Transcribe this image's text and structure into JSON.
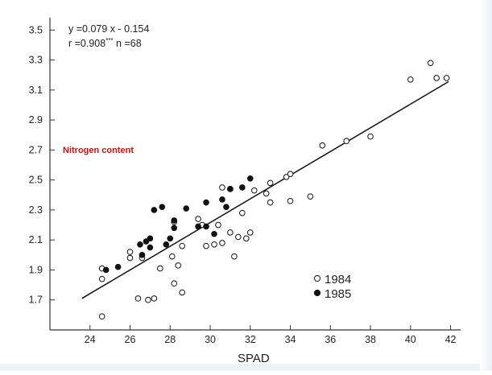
{
  "chart_data": {
    "type": "scatter",
    "title": "",
    "annotation_overlay": "Nitrogen content",
    "xlabel": "SPAD",
    "ylabel": "",
    "xlim": [
      22,
      42.5
    ],
    "ylim": [
      1.5,
      3.55
    ],
    "x_ticks": [
      24,
      26,
      28,
      30,
      32,
      34,
      36,
      38,
      40,
      42
    ],
    "y_ticks": [
      1.7,
      1.9,
      2.1,
      2.3,
      2.5,
      2.7,
      2.9,
      3.1,
      3.3,
      3.5
    ],
    "x_tick_labels": [
      "24",
      "26",
      "28",
      "30",
      "32",
      "34",
      "36",
      "38",
      "40",
      "42"
    ],
    "y_tick_labels": [
      "1.7",
      "1.9",
      "2.1",
      "2.3",
      "2.5",
      "2.7",
      "2.9",
      "3.1",
      "3.3",
      "3.5"
    ],
    "equation": "y =0.079 x - 0.154",
    "stats": "r =0.908*** n =68",
    "regression": {
      "slope": 0.079,
      "intercept": -0.154,
      "x_range": [
        23.6,
        41.9
      ]
    },
    "grid": false,
    "legend_position": "bottom-right",
    "colors": {
      "axis": "#333333",
      "open_marker_fill": "#ffffff",
      "filled_marker_fill": "#111111",
      "overlay_text": "#cc1111"
    },
    "series": [
      {
        "name": "1984",
        "marker": "open-circle",
        "points": [
          [
            24.6,
            1.91
          ],
          [
            24.6,
            1.84
          ],
          [
            24.6,
            1.59
          ],
          [
            26.0,
            2.02
          ],
          [
            26.0,
            1.98
          ],
          [
            26.4,
            1.71
          ],
          [
            26.6,
            1.98
          ],
          [
            26.9,
            1.7
          ],
          [
            27.2,
            1.71
          ],
          [
            27.5,
            1.91
          ],
          [
            28.2,
            2.22
          ],
          [
            28.1,
            1.99
          ],
          [
            28.2,
            1.81
          ],
          [
            28.4,
            1.93
          ],
          [
            28.6,
            1.75
          ],
          [
            28.6,
            2.06
          ],
          [
            29.4,
            2.24
          ],
          [
            29.6,
            2.2
          ],
          [
            29.8,
            2.06
          ],
          [
            30.2,
            2.07
          ],
          [
            30.4,
            2.2
          ],
          [
            30.6,
            2.08
          ],
          [
            30.6,
            2.45
          ],
          [
            31.0,
            2.44
          ],
          [
            31.0,
            2.15
          ],
          [
            31.2,
            1.99
          ],
          [
            31.4,
            2.12
          ],
          [
            31.6,
            2.28
          ],
          [
            31.8,
            2.11
          ],
          [
            32.0,
            2.15
          ],
          [
            32.2,
            2.43
          ],
          [
            32.8,
            2.41
          ],
          [
            33.0,
            2.48
          ],
          [
            33.0,
            2.35
          ],
          [
            33.8,
            2.52
          ],
          [
            34.0,
            2.54
          ],
          [
            34.0,
            2.36
          ],
          [
            35.0,
            2.39
          ],
          [
            35.6,
            2.73
          ],
          [
            36.8,
            2.76
          ],
          [
            38.0,
            2.79
          ],
          [
            40.0,
            3.17
          ],
          [
            41.0,
            3.28
          ],
          [
            41.3,
            3.18
          ],
          [
            41.8,
            3.18
          ]
        ]
      },
      {
        "name": "1985",
        "marker": "filled-circle",
        "points": [
          [
            24.8,
            1.9
          ],
          [
            25.4,
            1.92
          ],
          [
            26.5,
            2.07
          ],
          [
            26.6,
            2.0
          ],
          [
            26.8,
            2.09
          ],
          [
            27.0,
            2.05
          ],
          [
            27.0,
            2.11
          ],
          [
            27.2,
            2.3
          ],
          [
            27.6,
            2.32
          ],
          [
            27.8,
            2.07
          ],
          [
            28.0,
            2.11
          ],
          [
            28.2,
            2.18
          ],
          [
            28.2,
            2.23
          ],
          [
            28.8,
            2.31
          ],
          [
            29.4,
            2.19
          ],
          [
            29.8,
            2.19
          ],
          [
            29.8,
            2.35
          ],
          [
            30.2,
            2.14
          ],
          [
            30.6,
            2.37
          ],
          [
            30.8,
            2.32
          ],
          [
            31.0,
            2.44
          ],
          [
            31.6,
            2.45
          ],
          [
            32.0,
            2.51
          ]
        ]
      }
    ]
  }
}
